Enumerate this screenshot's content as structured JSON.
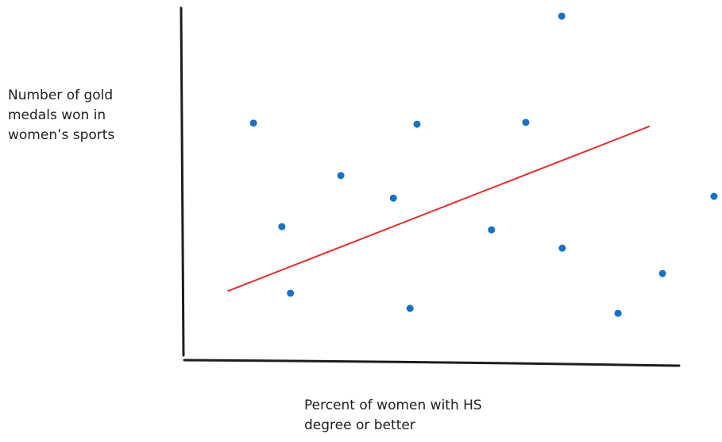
{
  "chart_data": {
    "type": "scatter",
    "ylabel": [
      "Number of gold",
      "medals won in",
      "women’s sports"
    ],
    "xlabel": [
      "Percent of women with HS",
      "degree or better"
    ],
    "x": [
      13.2,
      18.5,
      20.1,
      29.5,
      39.3,
      42.4,
      43.7,
      57.6,
      64.0,
      70.7,
      70.8,
      81.2,
      89.5,
      99.1
    ],
    "values": [
      67.3,
      37.9,
      19.0,
      52.4,
      46.0,
      14.7,
      67.0,
      37.0,
      67.5,
      97.7,
      31.8,
      13.3,
      24.6,
      46.5
    ],
    "color": "#1971c2",
    "trendline": {
      "x": [
        8.4,
        87.1
      ],
      "values": [
        19.6,
        66.4
      ],
      "color": "#e03131"
    },
    "xlim": [
      0,
      100
    ],
    "ylim": [
      0,
      100
    ]
  }
}
